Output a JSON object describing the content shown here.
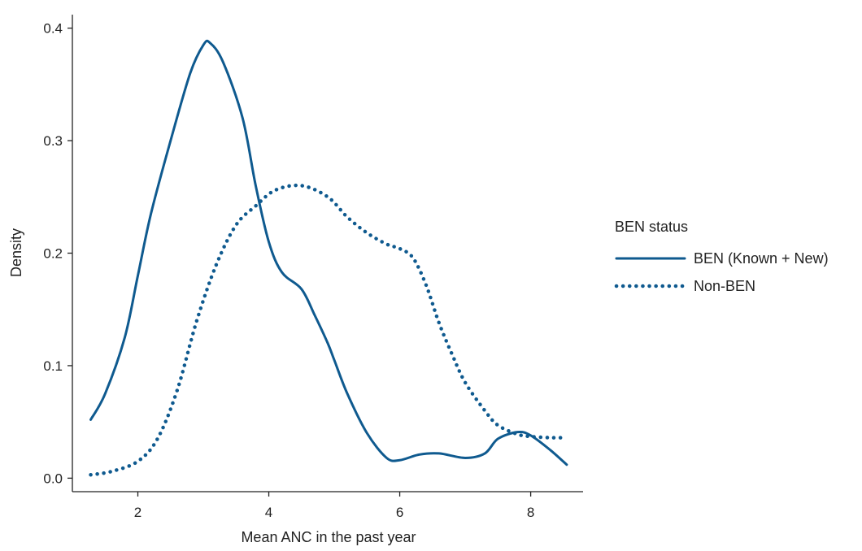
{
  "chart_data": {
    "type": "line",
    "title": "",
    "xlabel": "Mean ANC in the past year",
    "ylabel": "Density",
    "xlim": [
      1.0,
      8.8
    ],
    "ylim": [
      -0.012,
      0.412
    ],
    "x_ticks": [
      2,
      4,
      6,
      8
    ],
    "x_tick_labels": [
      "2",
      "4",
      "6",
      "8"
    ],
    "y_ticks": [
      0.0,
      0.1,
      0.2,
      0.3,
      0.4
    ],
    "y_tick_labels": [
      "0.0",
      "0.1",
      "0.2",
      "0.3",
      "0.4"
    ],
    "grid": false,
    "legend": {
      "title": "BEN status",
      "placement": "right"
    },
    "line_color": "#0f5a8f",
    "series": [
      {
        "name": "BEN (Known + New)",
        "line_style": "solid",
        "x": [
          1.28,
          1.5,
          1.8,
          2.0,
          2.2,
          2.5,
          2.8,
          3.0,
          3.1,
          3.3,
          3.6,
          3.8,
          4.0,
          4.2,
          4.5,
          4.7,
          4.9,
          5.0,
          5.2,
          5.5,
          5.8,
          6.0,
          6.3,
          6.6,
          7.0,
          7.3,
          7.5,
          7.8,
          8.0,
          8.3,
          8.55
        ],
        "y": [
          0.052,
          0.075,
          0.125,
          0.18,
          0.235,
          0.3,
          0.36,
          0.385,
          0.387,
          0.37,
          0.32,
          0.26,
          0.21,
          0.183,
          0.168,
          0.145,
          0.12,
          0.105,
          0.075,
          0.04,
          0.018,
          0.016,
          0.021,
          0.022,
          0.018,
          0.022,
          0.035,
          0.041,
          0.038,
          0.025,
          0.012
        ]
      },
      {
        "name": "Non-BEN",
        "line_style": "dotted",
        "x": [
          1.28,
          1.6,
          2.0,
          2.3,
          2.6,
          2.9,
          3.2,
          3.5,
          3.8,
          4.1,
          4.5,
          4.9,
          5.2,
          5.5,
          5.8,
          6.0,
          6.2,
          6.4,
          6.6,
          6.8,
          7.0,
          7.3,
          7.5,
          7.8,
          8.0,
          8.3,
          8.55
        ],
        "y": [
          0.003,
          0.006,
          0.015,
          0.035,
          0.078,
          0.14,
          0.19,
          0.225,
          0.242,
          0.256,
          0.26,
          0.25,
          0.232,
          0.218,
          0.208,
          0.204,
          0.196,
          0.172,
          0.138,
          0.11,
          0.085,
          0.06,
          0.047,
          0.039,
          0.037,
          0.036,
          0.036
        ]
      }
    ]
  }
}
